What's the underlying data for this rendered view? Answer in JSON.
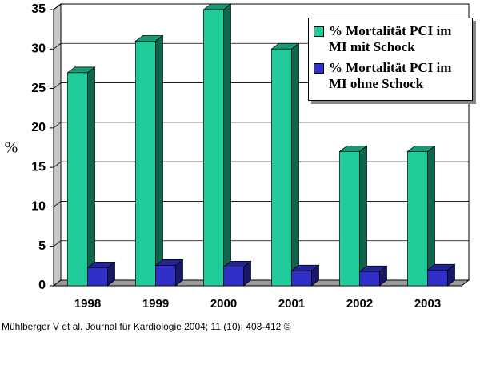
{
  "chart_data": {
    "type": "bar3d",
    "ylabel": "%",
    "categories": [
      "1998",
      "1999",
      "2000",
      "2001",
      "2002",
      "2003"
    ],
    "series": [
      {
        "name": "% Mortalität PCI im MI mit Schock",
        "color": "#1fcc99",
        "values": [
          27,
          31,
          35,
          30,
          17,
          17
        ]
      },
      {
        "name": "% Mortalität PCI im MI ohne Schock",
        "color": "#3030c8",
        "values": [
          2.3,
          2.6,
          2.4,
          1.9,
          1.8,
          2.0
        ]
      }
    ],
    "ylim": [
      0,
      35
    ],
    "yticks": [
      0,
      5,
      10,
      15,
      20,
      25,
      30,
      35
    ],
    "grid": true,
    "legend": "top-right",
    "source": "Mühlberger V et al. Journal für Kardiologie 2004; 11 (10): 403-412 ©"
  }
}
